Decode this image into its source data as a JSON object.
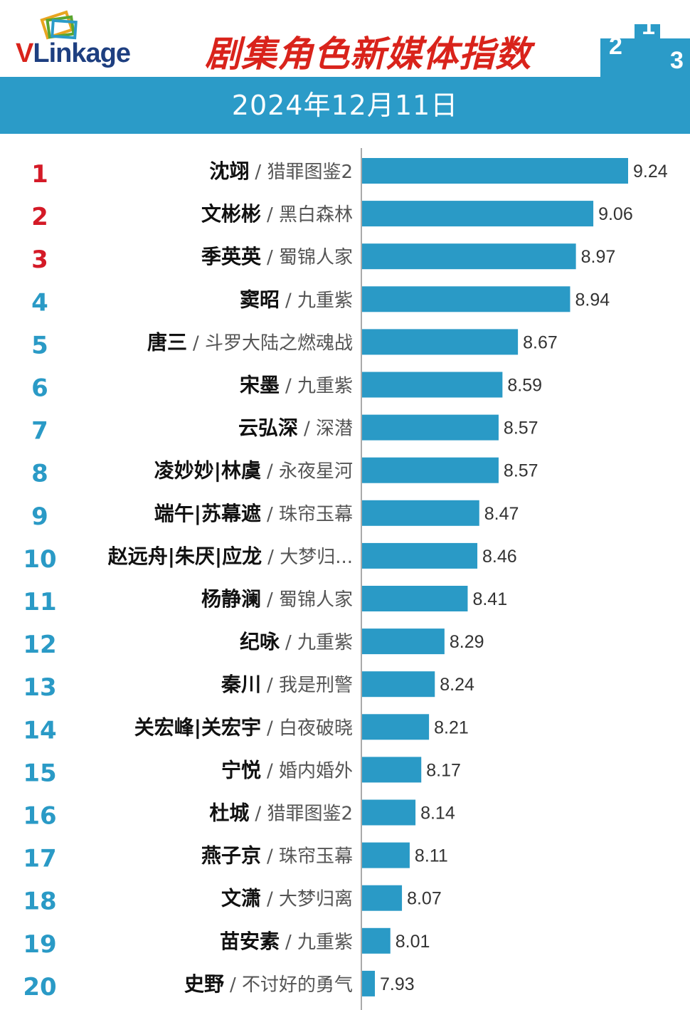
{
  "header": {
    "logo": "VLinkage",
    "title": "剧集角色新媒体指数",
    "podium_numbers": [
      "2",
      "1",
      "3"
    ],
    "date": "2024年12月11日"
  },
  "colors": {
    "brand_red": "#d9231b",
    "brand_blue": "#1e3f80",
    "band": "#2b9bc8",
    "bar": "#2a9ac6",
    "top_rank": "#d41a27",
    "other_rank": "#2a9ac6"
  },
  "chart_data": {
    "type": "bar",
    "orientation": "horizontal",
    "categories": [
      {
        "rank": "1",
        "name": "沈翊",
        "show": "猎罪图鉴2"
      },
      {
        "rank": "2",
        "name": "文彬彬",
        "show": "黑白森林"
      },
      {
        "rank": "3",
        "name": "季英英",
        "show": "蜀锦人家"
      },
      {
        "rank": "4",
        "name": "窦昭",
        "show": "九重紫"
      },
      {
        "rank": "5",
        "name": "唐三",
        "show": "斗罗大陆之燃魂战"
      },
      {
        "rank": "6",
        "name": "宋墨",
        "show": "九重紫"
      },
      {
        "rank": "7",
        "name": "云弘深",
        "show": "深潜"
      },
      {
        "rank": "8",
        "name": "凌妙妙|林虞",
        "show": "永夜星河"
      },
      {
        "rank": "9",
        "name": "端午|苏幕遮",
        "show": "珠帘玉幕"
      },
      {
        "rank": "10",
        "name": "赵远舟|朱厌|应龙",
        "show": "大梦归..."
      },
      {
        "rank": "11",
        "name": "杨静澜",
        "show": "蜀锦人家"
      },
      {
        "rank": "12",
        "name": "纪咏",
        "show": "九重紫"
      },
      {
        "rank": "13",
        "name": "秦川",
        "show": "我是刑警"
      },
      {
        "rank": "14",
        "name": "关宏峰|关宏宇",
        "show": "白夜破晓"
      },
      {
        "rank": "15",
        "name": "宁悦",
        "show": "婚内婚外"
      },
      {
        "rank": "16",
        "name": "杜城",
        "show": "猎罪图鉴2"
      },
      {
        "rank": "17",
        "name": "燕子京",
        "show": "珠帘玉幕"
      },
      {
        "rank": "18",
        "name": "文潇",
        "show": "大梦归离"
      },
      {
        "rank": "19",
        "name": "苗安素",
        "show": "九重紫"
      },
      {
        "rank": "20",
        "name": "史野",
        "show": "不讨好的勇气"
      }
    ],
    "values": [
      9.24,
      9.06,
      8.97,
      8.94,
      8.67,
      8.59,
      8.57,
      8.57,
      8.47,
      8.46,
      8.41,
      8.29,
      8.24,
      8.21,
      8.17,
      8.14,
      8.11,
      8.07,
      8.01,
      7.93
    ],
    "value_labels": [
      "9.24",
      "9.06",
      "8.97",
      "8.94",
      "8.67",
      "8.59",
      "8.57",
      "8.57",
      "8.47",
      "8.46",
      "8.41",
      "8.29",
      "8.24",
      "8.21",
      "8.17",
      "8.14",
      "8.11",
      "8.07",
      "8.01",
      "7.93"
    ],
    "xlim": [
      7.86,
      9.24
    ],
    "grid": false,
    "legend": "none"
  }
}
